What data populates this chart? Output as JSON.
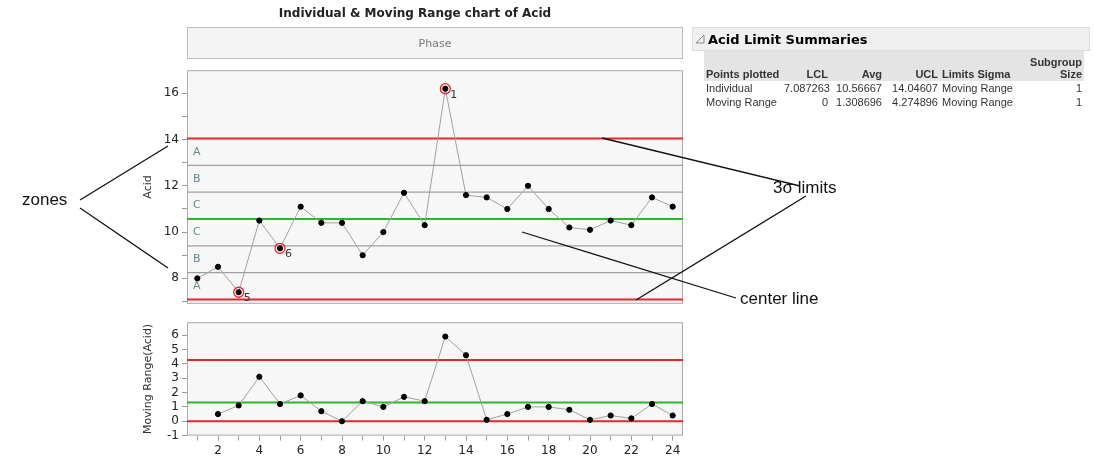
{
  "chart_data": [
    {
      "type": "line",
      "title": "Individual & Moving Range chart of Acid",
      "subtitle": "Phase",
      "ylabel": "Acid",
      "x": [
        1,
        2,
        3,
        4,
        5,
        6,
        7,
        8,
        9,
        10,
        11,
        12,
        13,
        14,
        15,
        16,
        17,
        18,
        19,
        20,
        21,
        22,
        23,
        24
      ],
      "series": [
        {
          "type": "line",
          "color": "#a0a0a0",
          "colors": [
            "#000000",
            "#000000",
            "#000000",
            "#000000",
            "#000000",
            "#000000",
            "#000000",
            "#000000",
            "#000000",
            "#000000",
            "#000000",
            "#000000",
            "#000000",
            "#000000",
            "#000000",
            "#000000",
            "#000000",
            "#000000",
            "#000000",
            "#000000",
            "#000000",
            "#000000",
            "#000000",
            "#000000"
          ],
          "values": [
            8.0,
            8.5,
            7.4,
            10.5,
            9.3,
            11.1,
            10.4,
            10.4,
            9.0,
            10.0,
            11.7,
            10.3,
            16.2,
            11.6,
            11.5,
            11.0,
            12.0,
            11.0,
            10.2,
            10.1,
            10.5,
            10.3,
            11.5,
            11.1
          ]
        },
        {
          "type": "scatter",
          "color": "#e8262c",
          "x": [
            3,
            5,
            13
          ],
          "values": [
            7.4,
            9.3,
            16.2
          ]
        }
      ],
      "xlim": [
        0.5,
        24.5
      ],
      "ylim": [
        6.9,
        17
      ],
      "yticks": [
        {
          "value": 7,
          "label": null
        },
        8,
        {
          "value": 9,
          "label": null
        },
        10,
        {
          "value": 11,
          "label": null
        },
        12,
        {
          "value": 13,
          "label": null
        },
        14,
        {
          "value": 15,
          "label": null
        },
        16
      ],
      "tick_labels": "y",
      "grid": false,
      "legend": false,
      "marker": "circle",
      "line_style": "solid",
      "ref_lines": [
        {
          "axis": "y",
          "value": 7.087263,
          "color": "#e8262c"
        },
        {
          "axis": "y",
          "value": 8.2466,
          "color": "#a0a0a0"
        },
        {
          "axis": "y",
          "value": 9.4066,
          "color": "#a0a0a0"
        },
        {
          "axis": "y",
          "value": 10.56667,
          "color": "#2db52d"
        },
        {
          "axis": "y",
          "value": 11.7266,
          "color": "#a0a0a0"
        },
        {
          "axis": "y",
          "value": 12.8866,
          "color": "#a0a0a0"
        },
        {
          "axis": "y",
          "value": 14.04607,
          "color": "#e8262c"
        }
      ],
      "annotations": [
        "A",
        "B",
        "C",
        "C",
        "B",
        "A",
        {
          "text": "1",
          "x": 13,
          "y": 16.2
        },
        {
          "text": "5",
          "x": 3,
          "y": 7.4
        },
        {
          "text": "6",
          "x": 5,
          "y": 9.3
        },
        "zones",
        "3σ limits",
        "center line"
      ]
    },
    {
      "type": "line",
      "ylabel": "Moving Range(Acid)",
      "x": [
        2,
        3,
        4,
        5,
        6,
        7,
        8,
        9,
        10,
        11,
        12,
        13,
        14,
        15,
        16,
        17,
        18,
        19,
        20,
        21,
        22,
        23,
        24
      ],
      "series": [
        {
          "type": "line",
          "color": "#a0a0a0",
          "colors": [
            "#000000",
            "#000000",
            "#000000",
            "#000000",
            "#000000",
            "#000000",
            "#000000",
            "#000000",
            "#000000",
            "#000000",
            "#000000",
            "#000000",
            "#000000",
            "#000000",
            "#000000",
            "#000000",
            "#000000",
            "#000000",
            "#000000",
            "#000000",
            "#000000",
            "#000000",
            "#000000"
          ],
          "values": [
            0.5,
            1.1,
            3.1,
            1.2,
            1.8,
            0.7,
            0.0,
            1.4,
            1.0,
            1.7,
            1.4,
            5.9,
            4.6,
            0.1,
            0.5,
            1.0,
            1.0,
            0.8,
            0.1,
            0.4,
            0.2,
            1.2,
            0.4
          ]
        }
      ],
      "xlim": [
        0.5,
        24.5
      ],
      "ylim": [
        -1,
        6.9
      ],
      "xticks": [
        {
          "value": 1,
          "label": null
        },
        2,
        {
          "value": 3,
          "label": null
        },
        4,
        {
          "value": 5,
          "label": null
        },
        6,
        {
          "value": 7,
          "label": null
        },
        8,
        {
          "value": 9,
          "label": null
        },
        10,
        {
          "value": 11,
          "label": null
        },
        12,
        {
          "value": 13,
          "label": null
        },
        14,
        {
          "value": 15,
          "label": null
        },
        16,
        {
          "value": 17,
          "label": null
        },
        18,
        {
          "value": 19,
          "label": null
        },
        20,
        {
          "value": 21,
          "label": null
        },
        22,
        {
          "value": 23,
          "label": null
        },
        24
      ],
      "yticks": [
        -1,
        0,
        1,
        2,
        3,
        4,
        5,
        6
      ],
      "grid": false,
      "legend": false,
      "marker": "circle",
      "line_style": "solid",
      "ref_lines": [
        {
          "axis": "y",
          "value": 0,
          "color": "#e8262c"
        },
        {
          "axis": "y",
          "value": 1.308696,
          "color": "#2db52d"
        },
        {
          "axis": "y",
          "value": 4.274896,
          "color": "#e8262c"
        }
      ]
    },
    {
      "type": "other",
      "title": "Acid Limit Summaries",
      "annotations": [
        "Points plotted",
        "LCL",
        "Avg",
        "UCL",
        "Limits Sigma",
        "Subgroup Size",
        "Individual",
        "7.087263",
        "10.56667",
        "14.04607",
        "Moving Range",
        "1",
        "Moving Range",
        "0",
        "1.308696",
        "4.274896",
        "Moving Range",
        "1"
      ]
    }
  ]
}
